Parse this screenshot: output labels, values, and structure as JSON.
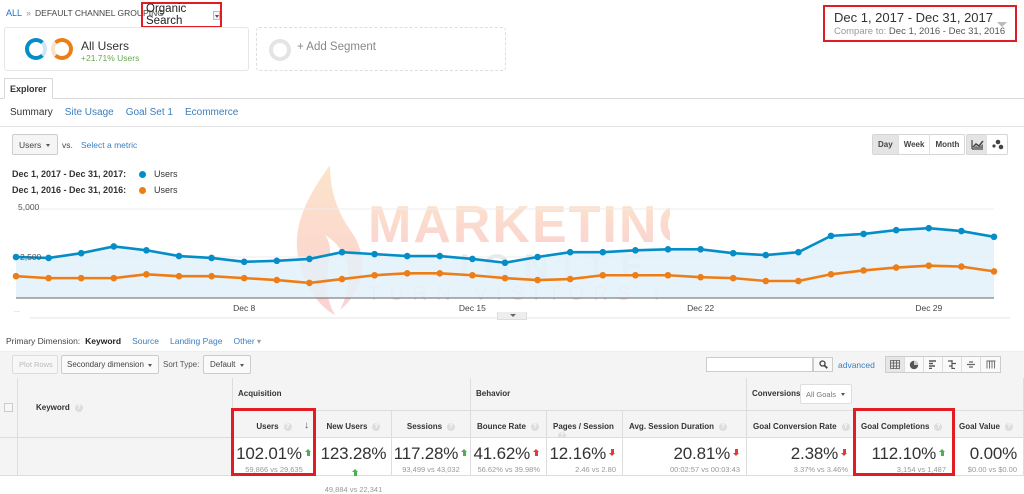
{
  "breadcrumb": {
    "root": "ALL",
    "separator": "»",
    "grouping": "DEFAULT CHANNEL GROUPING",
    "selected": "Organic Search"
  },
  "date_range": {
    "primary": "Dec 1, 2017 - Dec 31, 2017",
    "compare_label": "Compare to:",
    "compare": "Dec 1, 2016 - Dec 31, 2016"
  },
  "segments": {
    "active": {
      "name": "All Users",
      "change": "+21.71% Users"
    },
    "add_label": "+ Add Segment"
  },
  "tabs": {
    "main": "Explorer",
    "sub": [
      {
        "label": "Summary",
        "active": true
      },
      {
        "label": "Site Usage",
        "active": false
      },
      {
        "label": "Goal Set 1",
        "active": false
      },
      {
        "label": "Ecommerce",
        "active": false
      }
    ]
  },
  "metric_selector": {
    "metric": "Users",
    "vs_label": "vs.",
    "select_metric": "Select a metric"
  },
  "legend": [
    {
      "range": "Dec 1, 2017 - Dec 31, 2017:",
      "label": "Users",
      "color": "#058dc7"
    },
    {
      "range": "Dec 1, 2016 - Dec 31, 2016:",
      "label": "Users",
      "color": "#ed7e17"
    }
  ],
  "period_buttons": [
    {
      "label": "Day",
      "active": true
    },
    {
      "label": "Week",
      "active": false
    },
    {
      "label": "Month",
      "active": false
    }
  ],
  "chart_data": {
    "type": "line",
    "title": "",
    "xlabel": "",
    "ylabel": "Users",
    "ylim": [
      0,
      5000
    ],
    "y_ticks": [
      "5,000",
      "2,500"
    ],
    "x_tick_labels": [
      "Dec 8",
      "Dec 15",
      "Dec 22",
      "Dec 29"
    ],
    "x_tick_index": [
      7,
      14,
      21,
      28
    ],
    "grid": true,
    "legend_position": "top-left",
    "x": [
      "Dec 1",
      "Dec 2",
      "Dec 3",
      "Dec 4",
      "Dec 5",
      "Dec 6",
      "Dec 7",
      "Dec 8",
      "Dec 9",
      "Dec 10",
      "Dec 11",
      "Dec 12",
      "Dec 13",
      "Dec 14",
      "Dec 15",
      "Dec 16",
      "Dec 17",
      "Dec 18",
      "Dec 19",
      "Dec 20",
      "Dec 21",
      "Dec 22",
      "Dec 23",
      "Dec 24",
      "Dec 25",
      "Dec 26",
      "Dec 27",
      "Dec 28",
      "Dec 29",
      "Dec 30",
      "Dec 31"
    ],
    "series": [
      {
        "name": "Users (Dec 1, 2017 - Dec 31, 2017)",
        "color": "#058dc7",
        "area": true,
        "values": [
          2500,
          2450,
          2700,
          3050,
          2850,
          2550,
          2450,
          2250,
          2300,
          2400,
          2750,
          2650,
          2550,
          2550,
          2400,
          2200,
          2500,
          2750,
          2750,
          2850,
          2900,
          2900,
          2700,
          2600,
          2750,
          3600,
          3700,
          3900,
          4000,
          3850,
          3550
        ]
      },
      {
        "name": "Users (Dec 1, 2016 - Dec 31, 2016)",
        "color": "#ed7e17",
        "area": false,
        "values": [
          1500,
          1400,
          1400,
          1400,
          1600,
          1500,
          1500,
          1400,
          1300,
          1150,
          1350,
          1550,
          1650,
          1650,
          1550,
          1400,
          1300,
          1350,
          1550,
          1550,
          1550,
          1450,
          1400,
          1250,
          1250,
          1600,
          1800,
          1950,
          2050,
          2000,
          1750
        ]
      }
    ]
  },
  "watermark": {
    "line1": "MARKETING",
    "line2": "IGNITE",
    "line3": "TURN VISITORS INTO SALES!"
  },
  "primary_dimension": {
    "label": "Primary Dimension:",
    "current": "Keyword",
    "options": [
      "Source",
      "Landing Page"
    ],
    "other": "Other"
  },
  "toolbar": {
    "plot_rows": "Plot Rows",
    "secondary_dimension": "Secondary dimension",
    "sort_type_label": "Sort Type:",
    "sort_type": "Default",
    "search_value": "",
    "advanced": "advanced"
  },
  "table": {
    "dimension_header": "Keyword",
    "groups": {
      "acquisition": "Acquisition",
      "behavior": "Behavior",
      "conversions": "Conversions",
      "goal_select": "All Goals"
    },
    "columns": [
      {
        "header": "Users",
        "pct": "102.01%",
        "compare": "59,866 vs 29,635",
        "trend": "up-good",
        "sorted": true,
        "highlight": true
      },
      {
        "header": "New Users",
        "pct": "123.28%",
        "compare": "49,884 vs 22,341",
        "trend": "up-good"
      },
      {
        "header": "Sessions",
        "pct": "117.28%",
        "compare": "93,499 vs 43,032",
        "trend": "up-good"
      },
      {
        "header": "Bounce Rate",
        "pct": "41.62%",
        "compare": "56.62% vs 39.98%",
        "trend": "up-bad"
      },
      {
        "header": "Pages / Session",
        "pct": "12.16%",
        "compare": "2.46 vs 2.80",
        "trend": "down-bad"
      },
      {
        "header": "Avg. Session Duration",
        "pct": "20.81%",
        "compare": "00:02:57 vs 00:03:43",
        "trend": "down-bad"
      },
      {
        "header": "Goal Conversion Rate",
        "pct": "2.38%",
        "compare": "3.37% vs 3.46%",
        "trend": "down-bad"
      },
      {
        "header": "Goal Completions",
        "pct": "112.10%",
        "compare": "3,154 vs 1,487",
        "trend": "up-good",
        "highlight": true
      },
      {
        "header": "Goal Value",
        "pct": "0.00%",
        "compare": "$0.00 vs $0.00",
        "trend": "none"
      }
    ]
  },
  "colors": {
    "highlight_red": "#e31b23",
    "series_2017": "#058dc7",
    "series_2016": "#ed7e17",
    "trend_good": "#4caf50",
    "trend_bad": "#e53935",
    "link": "#3a7ebf"
  }
}
